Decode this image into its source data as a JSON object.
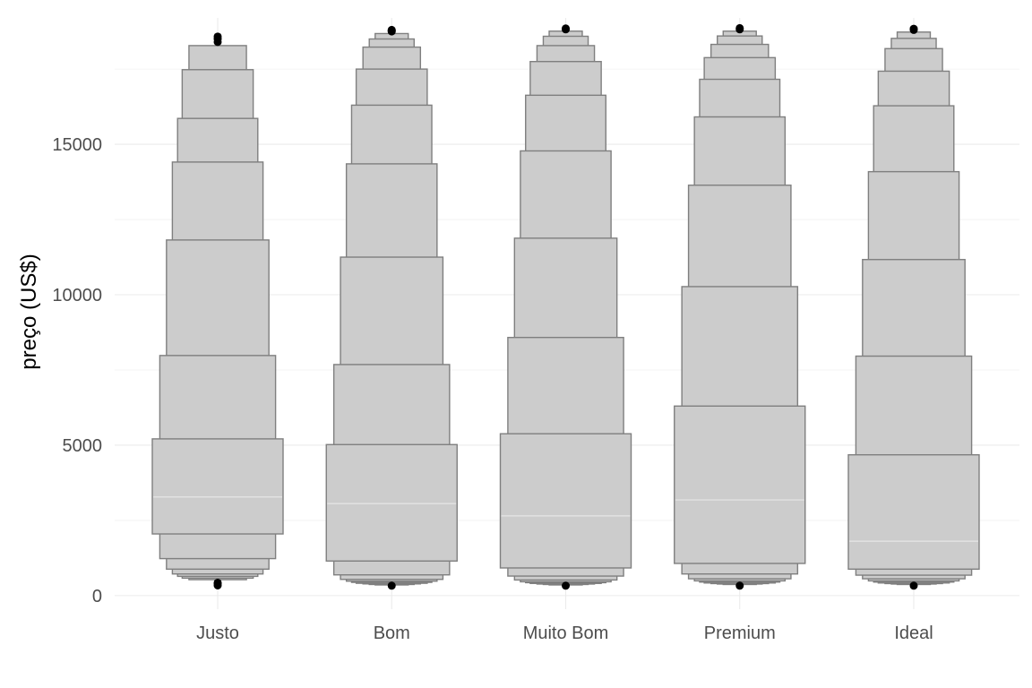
{
  "chart_data": {
    "type": "letter-value-plot",
    "title": "",
    "xlabel": "",
    "ylabel": "preço (US$)",
    "ylim": [
      -450,
      19200
    ],
    "yticks": [
      0,
      5000,
      10000,
      15000
    ],
    "grid": true,
    "categories": [
      "Justo",
      "Bom",
      "Muito Bom",
      "Premium",
      "Ideal"
    ],
    "series": [
      {
        "category": "Justo",
        "median": 3280,
        "levels": [
          [
            2050,
            5210
          ],
          [
            1230,
            7980
          ],
          [
            880,
            11820
          ],
          [
            720,
            14410
          ],
          [
            640,
            15860
          ],
          [
            580,
            17480
          ],
          [
            530,
            18280
          ]
        ],
        "outliers_low": [
          340,
          400,
          430
        ],
        "outliers_high": [
          18400,
          18500,
          18580
        ]
      },
      {
        "category": "Bom",
        "median": 3060,
        "levels": [
          [
            1150,
            5020
          ],
          [
            690,
            7680
          ],
          [
            540,
            11250
          ],
          [
            480,
            14350
          ],
          [
            440,
            16300
          ],
          [
            410,
            17500
          ],
          [
            390,
            18230
          ],
          [
            370,
            18500
          ],
          [
            355,
            18680
          ]
        ],
        "outliers_low": [
          330
        ],
        "outliers_high": [
          18750,
          18780,
          18800
        ]
      },
      {
        "category": "Muito Bom",
        "median": 2650,
        "levels": [
          [
            920,
            5380
          ],
          [
            650,
            8580
          ],
          [
            520,
            11880
          ],
          [
            460,
            14780
          ],
          [
            430,
            16630
          ],
          [
            405,
            17750
          ],
          [
            385,
            18280
          ],
          [
            370,
            18590
          ],
          [
            355,
            18760
          ]
        ],
        "outliers_low": [
          330
        ],
        "outliers_high": [
          18820,
          18850
        ]
      },
      {
        "category": "Premium",
        "median": 3180,
        "levels": [
          [
            1070,
            6300
          ],
          [
            720,
            10270
          ],
          [
            560,
            13640
          ],
          [
            490,
            15910
          ],
          [
            450,
            17160
          ],
          [
            420,
            17880
          ],
          [
            400,
            18320
          ],
          [
            385,
            18600
          ],
          [
            370,
            18760
          ]
        ],
        "outliers_low": [
          330
        ],
        "outliers_high": [
          18820,
          18860
        ]
      },
      {
        "category": "Ideal",
        "median": 1810,
        "levels": [
          [
            880,
            4680
          ],
          [
            680,
            7960
          ],
          [
            560,
            11170
          ],
          [
            490,
            14090
          ],
          [
            450,
            16280
          ],
          [
            420,
            17430
          ],
          [
            400,
            18180
          ],
          [
            385,
            18520
          ],
          [
            370,
            18730
          ]
        ],
        "outliers_low": [
          330
        ],
        "outliers_high": [
          18800,
          18840
        ]
      }
    ]
  }
}
